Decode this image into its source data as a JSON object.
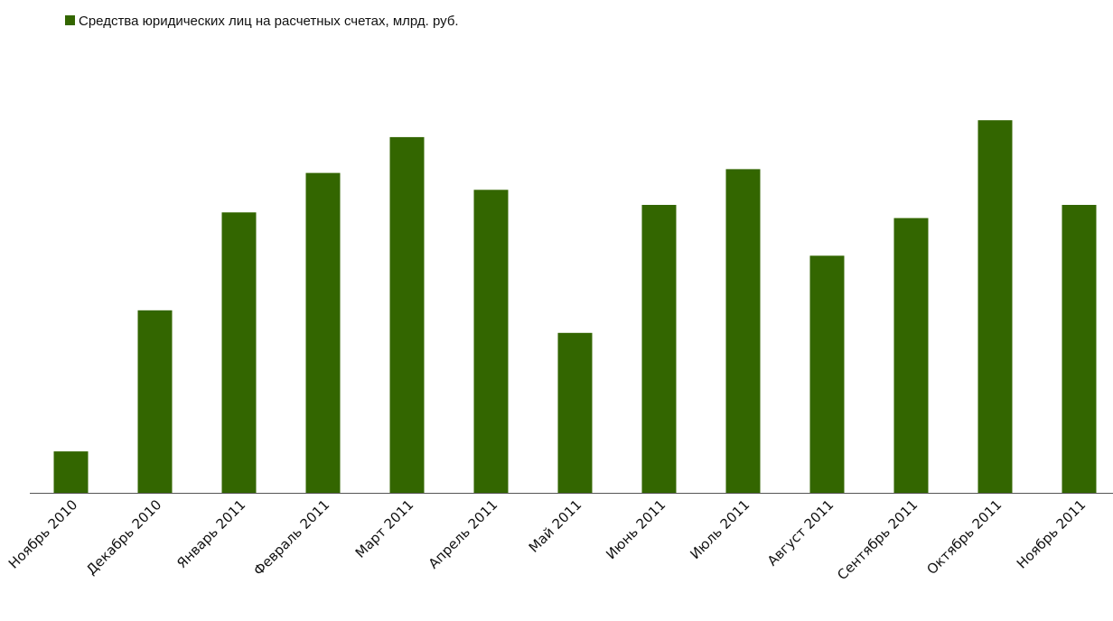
{
  "chart_data": {
    "type": "bar",
    "title": "",
    "xlabel": "",
    "ylabel": "",
    "legend": {
      "position": "top-left",
      "entries": [
        "Средства юридических лиц на расчетных счетах, млрд. руб."
      ]
    },
    "grid": false,
    "y_axis_visible": false,
    "ylim": [
      0,
      100
    ],
    "bar_color": "#336600",
    "categories": [
      "Ноябрь 2010",
      "Декабрь 2010",
      "Январь 2011",
      "Февраль 2011",
      "Март 2011",
      "Апрель 2011",
      "Май 2011",
      "Июнь 2011",
      "Июль 2011",
      "Август 2011",
      "Сентябрь 2011",
      "Октябрь 2011",
      "Ноябрь 2011"
    ],
    "series": [
      {
        "name": "Средства юридических лиц на расчетных счетах, млрд. руб.",
        "values": [
          11,
          48.5,
          74.5,
          85,
          94.5,
          80.5,
          42.5,
          76.5,
          86,
          63,
          73,
          99,
          76.5
        ]
      }
    ]
  }
}
